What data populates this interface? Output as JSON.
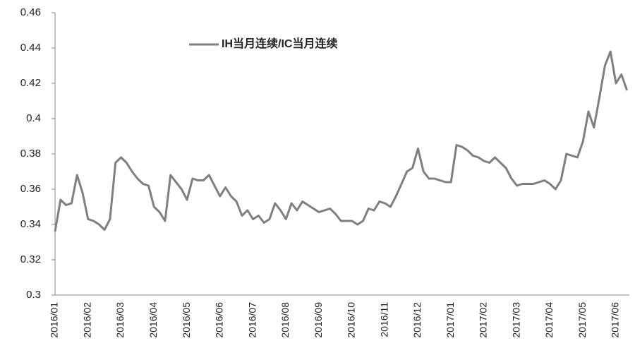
{
  "chart_data": {
    "type": "line",
    "categories": [
      "2016/01",
      null,
      null,
      null,
      null,
      null,
      "2016/02",
      null,
      null,
      null,
      null,
      null,
      "2016/03",
      null,
      null,
      null,
      null,
      null,
      "2016/04",
      null,
      null,
      null,
      null,
      null,
      "2016/05",
      null,
      null,
      null,
      null,
      null,
      "2016/06",
      null,
      null,
      null,
      null,
      null,
      "2016/07",
      null,
      null,
      null,
      null,
      null,
      "2016/08",
      null,
      null,
      null,
      null,
      null,
      "2016/09",
      null,
      null,
      null,
      null,
      null,
      "2016/10",
      null,
      null,
      null,
      null,
      null,
      "2016/11",
      null,
      null,
      null,
      null,
      null,
      "2016/12",
      null,
      null,
      null,
      null,
      null,
      "2017/01",
      null,
      null,
      null,
      null,
      null,
      "2017/02",
      null,
      null,
      null,
      null,
      null,
      "2017/03",
      null,
      null,
      null,
      null,
      null,
      "2017/04",
      null,
      null,
      null,
      null,
      null,
      "2017/05",
      null,
      null,
      null,
      null,
      null,
      "2017/06",
      null,
      null
    ],
    "series": [
      {
        "name": "IH当月连续/IC当月连续",
        "color": "#7f7f7f",
        "values": [
          0.336,
          0.354,
          0.351,
          0.352,
          0.368,
          0.358,
          0.343,
          0.342,
          0.34,
          0.337,
          0.343,
          0.375,
          0.378,
          0.375,
          0.37,
          0.366,
          0.363,
          0.362,
          0.35,
          0.347,
          0.342,
          0.368,
          0.364,
          0.36,
          0.354,
          0.366,
          0.365,
          0.365,
          0.368,
          0.362,
          0.356,
          0.361,
          0.356,
          0.353,
          0.345,
          0.348,
          0.343,
          0.345,
          0.341,
          0.343,
          0.352,
          0.348,
          0.343,
          0.352,
          0.348,
          0.353,
          0.351,
          0.349,
          0.347,
          0.348,
          0.349,
          0.346,
          0.342,
          0.342,
          0.342,
          0.34,
          0.342,
          0.349,
          0.348,
          0.353,
          0.352,
          0.35,
          0.356,
          0.363,
          0.37,
          0.372,
          0.383,
          0.37,
          0.366,
          0.366,
          0.365,
          0.364,
          0.364,
          0.385,
          0.384,
          0.382,
          0.379,
          0.378,
          0.376,
          0.375,
          0.378,
          0.375,
          0.372,
          0.366,
          0.362,
          0.363,
          0.363,
          0.363,
          0.364,
          0.365,
          0.363,
          0.36,
          0.365,
          0.38,
          0.379,
          0.378,
          0.387,
          0.404,
          0.395,
          0.412,
          0.43,
          0.438,
          0.42,
          0.425,
          0.416
        ]
      }
    ],
    "ylim": [
      0.3,
      0.46
    ],
    "yticks": [
      0.3,
      0.32,
      0.34,
      0.36,
      0.38,
      0.4,
      0.42,
      0.44,
      0.46
    ],
    "grid": false,
    "legend": "top"
  }
}
